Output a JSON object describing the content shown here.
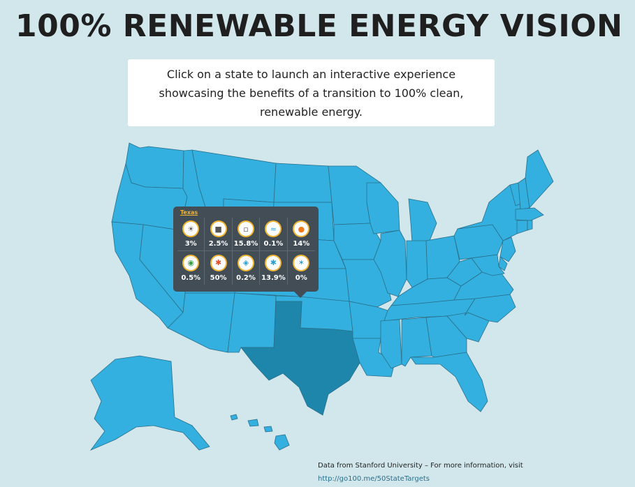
{
  "page": {
    "title": "100% RENEWABLE ENERGY VISION",
    "intro": "Click on a state to launch an interactive experience showcasing the benefits of a transition to 100% clean, renewable energy."
  },
  "map": {
    "states": [
      "WA",
      "OR",
      "CA",
      "ID",
      "NV",
      "UT",
      "AZ",
      "MT",
      "WY",
      "CO",
      "NM",
      "ND",
      "SD",
      "NE",
      "KS",
      "OK",
      "TX",
      "MN",
      "IA",
      "MO",
      "AR",
      "LA",
      "WI",
      "IL",
      "MI",
      "IN",
      "OH",
      "KY",
      "TN",
      "MS",
      "AL",
      "GA",
      "FL",
      "SC",
      "NC",
      "VA",
      "WV",
      "PA",
      "NY",
      "VT",
      "NH",
      "ME",
      "MA",
      "CT",
      "RI",
      "NJ",
      "DE",
      "MD",
      "AK",
      "HI"
    ],
    "selected_state": "TX",
    "colors": {
      "state": "#33b0df",
      "selected": "#1e86aa",
      "border": "#2a6f8a",
      "background": "#d2e7ec"
    }
  },
  "tooltip": {
    "state": "Texas",
    "items": [
      {
        "icon": "residential-solar-icon",
        "value": "3%"
      },
      {
        "icon": "commercial-solar-icon",
        "value": "2.5%"
      },
      {
        "icon": "solar-plant-icon",
        "value": "15.8%"
      },
      {
        "icon": "wave-icon",
        "value": "0.1%"
      },
      {
        "icon": "csp-solar-icon",
        "value": "14%"
      },
      {
        "icon": "geothermal-icon",
        "value": "0.5%"
      },
      {
        "icon": "onshore-wind-icon",
        "value": "50%"
      },
      {
        "icon": "hydro-icon",
        "value": "0.2%"
      },
      {
        "icon": "offshore-wind-icon",
        "value": "13.9%"
      },
      {
        "icon": "tidal-icon",
        "value": "0%"
      }
    ]
  },
  "footer": {
    "credit": "Data from Stanford University – For more information, visit",
    "link": "http://go100.me/50StateTargets"
  }
}
